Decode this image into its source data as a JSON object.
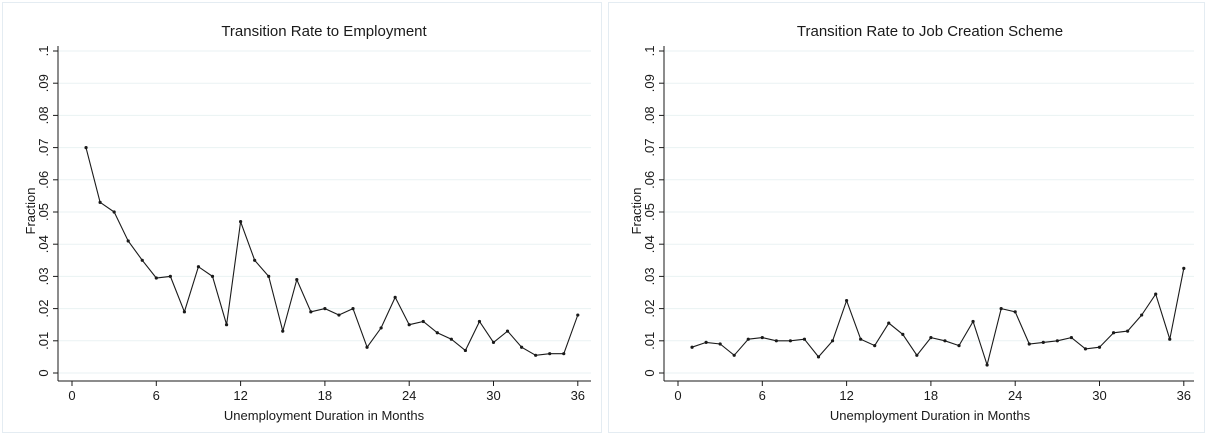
{
  "chart_data": [
    {
      "type": "line",
      "title": "Transition Rate to Employment",
      "xlabel": "Unemployment Duration in Months",
      "ylabel": "Fraction",
      "xlim": [
        0,
        37
      ],
      "ylim": [
        0,
        0.1
      ],
      "xticks": [
        0,
        6,
        12,
        18,
        24,
        30,
        36
      ],
      "xtick_labels": [
        "0",
        "6",
        "12",
        "18",
        "24",
        "30",
        "36"
      ],
      "yticks": [
        0,
        0.01,
        0.02,
        0.03,
        0.04,
        0.05,
        0.06,
        0.07,
        0.08,
        0.09,
        0.1
      ],
      "ytick_labels": [
        "0",
        ".01",
        ".02",
        ".03",
        ".04",
        ".05",
        ".06",
        ".07",
        ".08",
        ".09",
        ".1"
      ],
      "grid": true,
      "x": [
        1,
        2,
        3,
        4,
        5,
        6,
        7,
        8,
        9,
        10,
        11,
        12,
        13,
        14,
        15,
        16,
        17,
        18,
        19,
        20,
        21,
        22,
        23,
        24,
        25,
        26,
        27,
        28,
        29,
        30,
        31,
        32,
        33,
        34,
        35,
        36
      ],
      "values": [
        0.07,
        0.053,
        0.05,
        0.041,
        0.035,
        0.0295,
        0.03,
        0.019,
        0.033,
        0.03,
        0.015,
        0.047,
        0.035,
        0.03,
        0.013,
        0.029,
        0.019,
        0.02,
        0.018,
        0.02,
        0.008,
        0.014,
        0.0235,
        0.015,
        0.016,
        0.0125,
        0.0105,
        0.007,
        0.016,
        0.0095,
        0.013,
        0.008,
        0.0055,
        0.006,
        0.006,
        0.018
      ]
    },
    {
      "type": "line",
      "title": "Transition Rate to Job Creation Scheme",
      "xlabel": "Unemployment Duration in Months",
      "ylabel": "Fraction",
      "xlim": [
        0,
        37
      ],
      "ylim": [
        0,
        0.1
      ],
      "xticks": [
        0,
        6,
        12,
        18,
        24,
        30,
        36
      ],
      "xtick_labels": [
        "0",
        "6",
        "12",
        "18",
        "24",
        "30",
        "36"
      ],
      "yticks": [
        0,
        0.01,
        0.02,
        0.03,
        0.04,
        0.05,
        0.06,
        0.07,
        0.08,
        0.09,
        0.1
      ],
      "ytick_labels": [
        "0",
        ".01",
        ".02",
        ".03",
        ".04",
        ".05",
        ".06",
        ".07",
        ".08",
        ".09",
        ".1"
      ],
      "grid": true,
      "x": [
        1,
        2,
        3,
        4,
        5,
        6,
        7,
        8,
        9,
        10,
        11,
        12,
        13,
        14,
        15,
        16,
        17,
        18,
        19,
        20,
        21,
        22,
        23,
        24,
        25,
        26,
        27,
        28,
        29,
        30,
        31,
        32,
        33,
        34,
        35,
        36
      ],
      "values": [
        0.008,
        0.0095,
        0.009,
        0.0055,
        0.0105,
        0.011,
        0.01,
        0.01,
        0.0105,
        0.005,
        0.01,
        0.0225,
        0.0105,
        0.0085,
        0.0155,
        0.012,
        0.0055,
        0.011,
        0.01,
        0.0085,
        0.016,
        0.0025,
        0.02,
        0.019,
        0.009,
        0.0095,
        0.01,
        0.011,
        0.0075,
        0.008,
        0.0125,
        0.013,
        0.018,
        0.0245,
        0.0105,
        0.0325
      ]
    }
  ]
}
